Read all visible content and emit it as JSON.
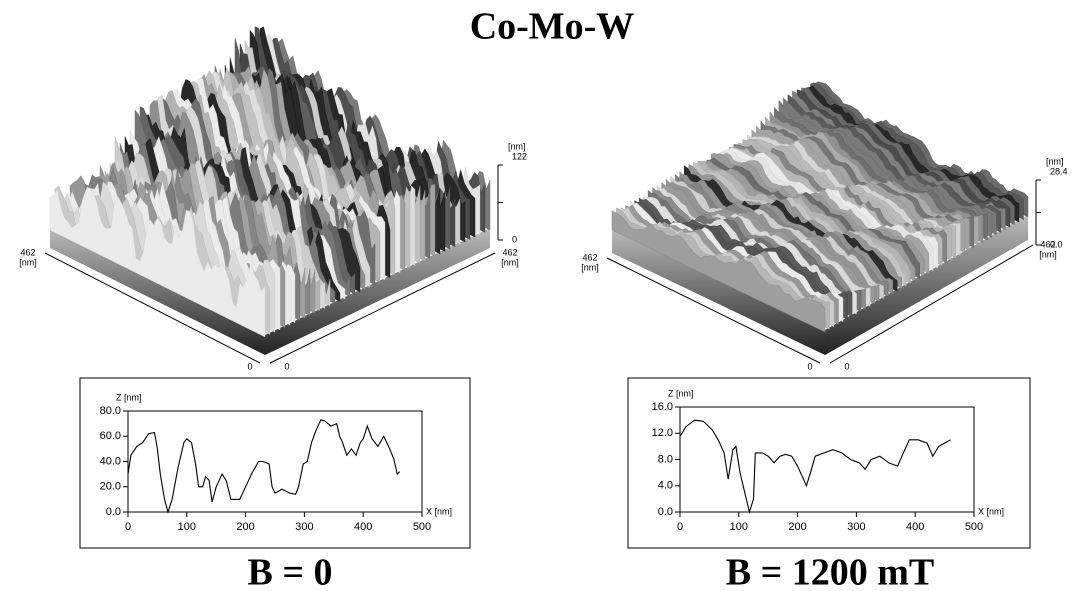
{
  "title": "Co-Mo-W",
  "chart_data": [
    {
      "type": "line",
      "caption": "B = 0",
      "x_label": "X [nm]",
      "y_label": "Z [nm]",
      "color": "#000000",
      "x": [
        0,
        5,
        15,
        25,
        35,
        45,
        50,
        55,
        62,
        68,
        75,
        85,
        95,
        100,
        108,
        115,
        120,
        127,
        132,
        138,
        143,
        150,
        160,
        167,
        175,
        190,
        200,
        210,
        222,
        230,
        240,
        245,
        250,
        262,
        275,
        285,
        290,
        298,
        305,
        312,
        320,
        328,
        335,
        345,
        355,
        360,
        365,
        372,
        380,
        388,
        395,
        400,
        407,
        415,
        425,
        435,
        445,
        452,
        458,
        462
      ],
      "values": [
        30,
        45,
        52,
        55,
        62,
        63,
        50,
        30,
        10,
        0,
        10,
        35,
        55,
        58,
        55,
        38,
        20,
        20,
        28,
        25,
        8,
        20,
        30,
        25,
        10,
        10,
        20,
        30,
        40,
        40,
        38,
        20,
        15,
        18,
        15,
        14,
        20,
        38,
        40,
        55,
        65,
        73,
        72,
        68,
        70,
        60,
        55,
        45,
        50,
        45,
        55,
        58,
        68,
        58,
        52,
        60,
        50,
        42,
        30,
        32
      ],
      "xlim": [
        0,
        500
      ],
      "xticks": [
        0,
        100,
        200,
        300,
        400,
        500
      ],
      "ylim": [
        0,
        80
      ],
      "yticks": [
        {
          "value": 0,
          "label": "0.0"
        },
        {
          "value": 20,
          "label": "20.0"
        },
        {
          "value": 40,
          "label": "40.0"
        },
        {
          "value": 60,
          "label": "60.0"
        },
        {
          "value": 80,
          "label": "80.0"
        }
      ],
      "surface": {
        "unit": "[nm]",
        "xlim": [
          0,
          462
        ],
        "ylim": [
          0,
          462
        ],
        "zticks": [
          0,
          122
        ]
      }
    },
    {
      "type": "line",
      "caption": "B = 1200 mT",
      "x_label": "X [nm]",
      "y_label": "Z [nm]",
      "color": "#000000",
      "x": [
        0,
        10,
        25,
        40,
        55,
        65,
        75,
        82,
        90,
        95,
        102,
        110,
        118,
        125,
        128,
        140,
        150,
        160,
        170,
        180,
        190,
        200,
        210,
        215,
        222,
        230,
        245,
        260,
        275,
        290,
        305,
        315,
        325,
        340,
        355,
        370,
        380,
        390,
        405,
        420,
        430,
        440,
        450,
        460
      ],
      "values": [
        11.5,
        13,
        14,
        13.8,
        12.5,
        11,
        9,
        5,
        9.5,
        10,
        6,
        3,
        0,
        2,
        9,
        9,
        8.5,
        7.5,
        8.5,
        8.8,
        8.5,
        7,
        5,
        4,
        6,
        8.5,
        9,
        9.5,
        9,
        8,
        7.5,
        6.5,
        8,
        8.5,
        7.5,
        7,
        9,
        11,
        11,
        10.5,
        8.5,
        10,
        10.5,
        11
      ],
      "xlim": [
        0,
        500
      ],
      "xticks": [
        0,
        100,
        200,
        300,
        400,
        500
      ],
      "ylim": [
        0,
        16
      ],
      "yticks": [
        {
          "value": 0,
          "label": "0.0"
        },
        {
          "value": 4,
          "label": "4.0"
        },
        {
          "value": 8,
          "label": "8.0"
        },
        {
          "value": 12,
          "label": "12.0"
        },
        {
          "value": 16,
          "label": "16.0"
        }
      ],
      "surface": {
        "unit": "[nm]",
        "xlim": [
          0,
          462
        ],
        "ylim": [
          0,
          462
        ],
        "zticks": [
          {
            "value": 0,
            "label": "0.0"
          },
          {
            "value": 28.4,
            "label": "28.4"
          }
        ]
      }
    }
  ]
}
